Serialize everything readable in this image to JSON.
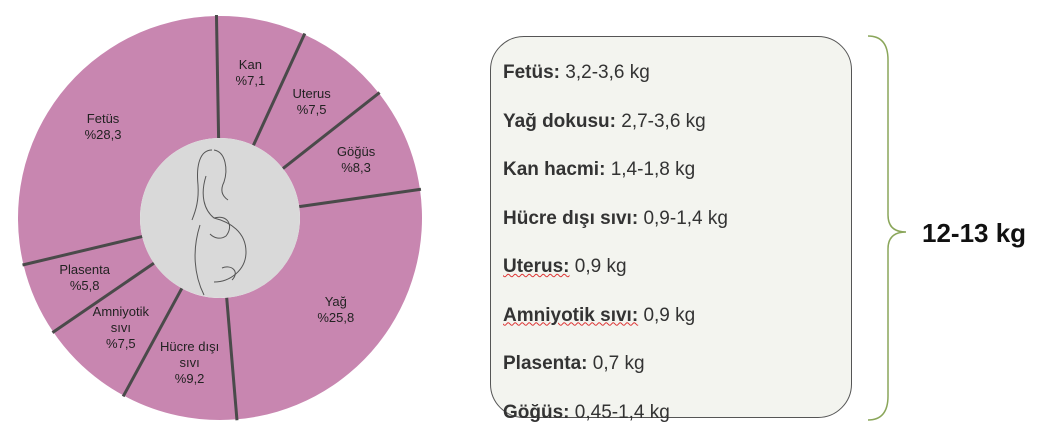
{
  "chart_data": {
    "type": "pie",
    "donut": true,
    "categories": [
      "Kan",
      "Uterus",
      "Göğüs",
      "Yağ",
      "Hücre dışı sıvı",
      "Amniyotik sıvı",
      "Plasenta",
      "Fetüs"
    ],
    "values": [
      7.1,
      7.5,
      8.3,
      25.8,
      9.2,
      7.5,
      5.8,
      28.3
    ],
    "value_labels": [
      "%7,1",
      "%7,5",
      "%8,3",
      "%25,8",
      "%9,2",
      "%7,5",
      "%5,8",
      "%28,3"
    ],
    "color": "#c886b0"
  },
  "box": {
    "items": [
      {
        "label": "Fetüs:",
        "value": "3,2-3,6 kg"
      },
      {
        "label": "Yağ dokusu:",
        "value": "2,7-3,6 kg"
      },
      {
        "label": "Kan hacmi:",
        "value": "1,4-1,8 kg"
      },
      {
        "label": "Hücre dışı sıvı:",
        "value": "0,9-1,4 kg"
      },
      {
        "label": "Uterus:",
        "value": "0,9 kg"
      },
      {
        "label": "Amniyotik sıvı:",
        "value": "0,9 kg"
      },
      {
        "label": "Plasenta:",
        "value": "0,7 kg"
      },
      {
        "label": "Göğüs:",
        "value": "0,45-1,4 kg"
      }
    ],
    "total": "12-13 kg"
  }
}
